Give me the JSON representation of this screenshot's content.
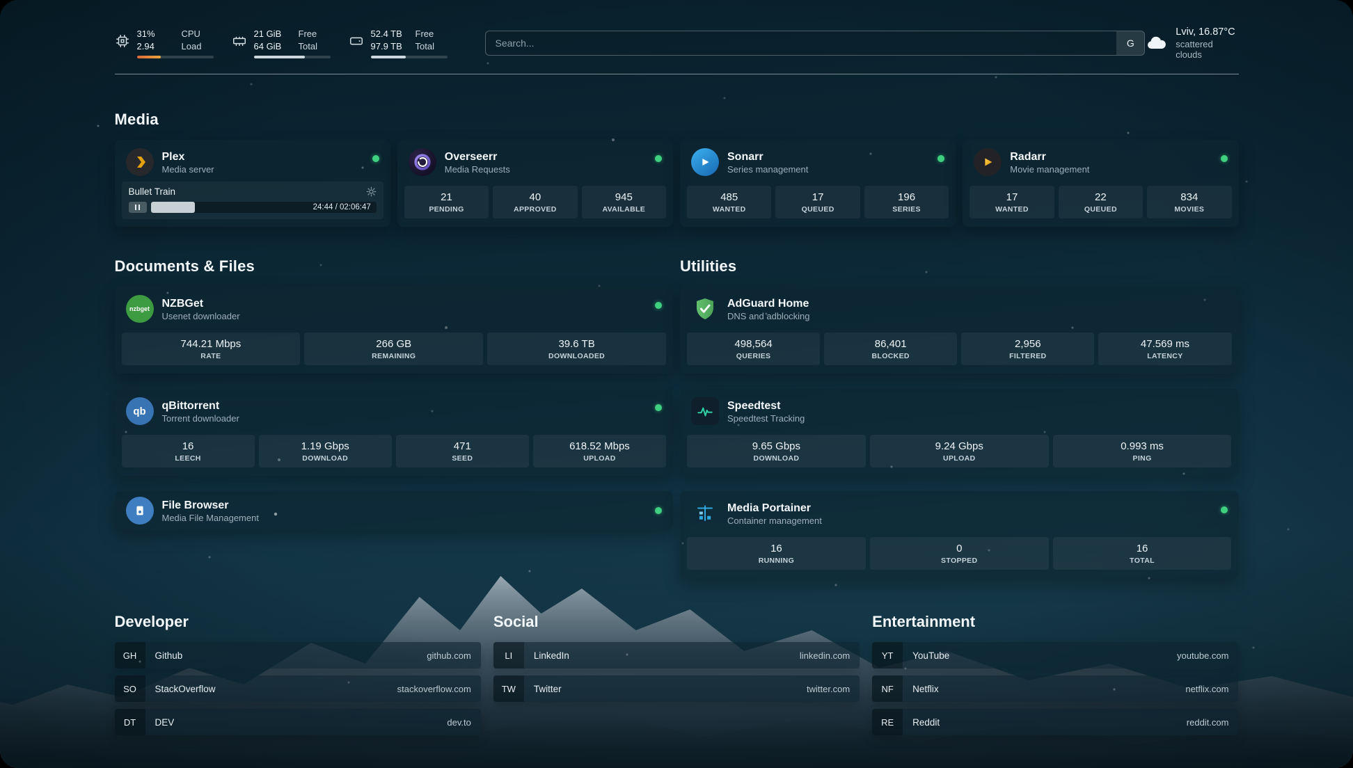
{
  "topbar": {
    "cpu": {
      "icon": "cpu-icon",
      "percent": "31%",
      "load": "2.94",
      "label_top": "CPU",
      "label_bottom": "Load",
      "bar_percent": 31,
      "bar_color": "#e8a43c"
    },
    "memory": {
      "icon": "memory-icon",
      "free": "21 GiB",
      "total": "64 GiB",
      "label_top": "Free",
      "label_bottom": "Total",
      "bar_percent": 67
    },
    "disk": {
      "icon": "disk-icon",
      "free": "52.4 TB",
      "total": "97.9 TB",
      "label_top": "Free",
      "label_bottom": "Total",
      "bar_percent": 46
    },
    "search": {
      "icon": "search-provider-icon",
      "placeholder": "Search...",
      "button_label": "G"
    },
    "weather": {
      "icon": "cloud-icon",
      "location": "Lviv, 16.87°C",
      "condition": "scattered clouds"
    }
  },
  "media": {
    "title": "Media",
    "plex": {
      "icon": "plex-icon",
      "name": "Plex",
      "subtitle": "Media server",
      "status_color": "#3ecf7f",
      "now_playing": "Bullet Train",
      "time": "24:44 / 02:06:47",
      "progress_percent": 19.5
    },
    "overseerr": {
      "icon": "overseerr-icon",
      "name": "Overseerr",
      "subtitle": "Media Requests",
      "stats": [
        {
          "value": "21",
          "label": "PENDING"
        },
        {
          "value": "40",
          "label": "APPROVED"
        },
        {
          "value": "945",
          "label": "AVAILABLE"
        }
      ]
    },
    "sonarr": {
      "icon": "sonarr-icon",
      "name": "Sonarr",
      "subtitle": "Series management",
      "stats": [
        {
          "value": "485",
          "label": "WANTED"
        },
        {
          "value": "17",
          "label": "QUEUED"
        },
        {
          "value": "196",
          "label": "SERIES"
        }
      ]
    },
    "radarr": {
      "icon": "radarr-icon",
      "name": "Radarr",
      "subtitle": "Movie management",
      "stats": [
        {
          "value": "17",
          "label": "WANTED"
        },
        {
          "value": "22",
          "label": "QUEUED"
        },
        {
          "value": "834",
          "label": "MOVIES"
        }
      ]
    }
  },
  "documents": {
    "title": "Documents & Files",
    "nzbget": {
      "icon": "nzbget-icon",
      "icon_text": "nzbget",
      "name": "NZBGet",
      "subtitle": "Usenet downloader",
      "stats": [
        {
          "value": "744.21 Mbps",
          "label": "RATE"
        },
        {
          "value": "266 GB",
          "label": "REMAINING"
        },
        {
          "value": "39.6 TB",
          "label": "DOWNLOADED"
        }
      ]
    },
    "qbittorrent": {
      "icon": "qbittorrent-icon",
      "icon_text": "qb",
      "name": "qBittorrent",
      "subtitle": "Torrent downloader",
      "stats": [
        {
          "value": "16",
          "label": "LEECH"
        },
        {
          "value": "1.19 Gbps",
          "label": "DOWNLOAD"
        },
        {
          "value": "471",
          "label": "SEED"
        },
        {
          "value": "618.52 Mbps",
          "label": "UPLOAD"
        }
      ]
    },
    "filebrowser": {
      "icon": "filebrowser-icon",
      "name": "File Browser",
      "subtitle": "Media File Management"
    }
  },
  "utilities": {
    "title": "Utilities",
    "adguard": {
      "icon": "adguard-shield-icon",
      "name": "AdGuard Home",
      "subtitle": "DNS and adblocking",
      "stats": [
        {
          "value": "498,564",
          "label": "QUERIES"
        },
        {
          "value": "86,401",
          "label": "BLOCKED"
        },
        {
          "value": "2,956",
          "label": "FILTERED"
        },
        {
          "value": "47.569 ms",
          "label": "LATENCY"
        }
      ]
    },
    "speedtest": {
      "icon": "speedtest-icon",
      "name": "Speedtest",
      "subtitle": "Speedtest Tracking",
      "stats": [
        {
          "value": "9.65 Gbps",
          "label": "DOWNLOAD"
        },
        {
          "value": "9.24 Gbps",
          "label": "UPLOAD"
        },
        {
          "value": "0.993 ms",
          "label": "PING"
        }
      ]
    },
    "portainer": {
      "icon": "portainer-icon",
      "name": "Media Portainer",
      "subtitle": "Container management",
      "stats": [
        {
          "value": "16",
          "label": "RUNNING"
        },
        {
          "value": "0",
          "label": "STOPPED"
        },
        {
          "value": "16",
          "label": "TOTAL"
        }
      ]
    }
  },
  "bookmarks": {
    "developer": {
      "title": "Developer",
      "items": [
        {
          "abbr": "GH",
          "name": "Github",
          "url": "github.com"
        },
        {
          "abbr": "SO",
          "name": "StackOverflow",
          "url": "stackoverflow.com"
        },
        {
          "abbr": "DT",
          "name": "DEV",
          "url": "dev.to"
        }
      ]
    },
    "social": {
      "title": "Social",
      "items": [
        {
          "abbr": "LI",
          "name": "LinkedIn",
          "url": "linkedin.com"
        },
        {
          "abbr": "TW",
          "name": "Twitter",
          "url": "twitter.com"
        }
      ]
    },
    "entertainment": {
      "title": "Entertainment",
      "items": [
        {
          "abbr": "YT",
          "name": "YouTube",
          "url": "youtube.com"
        },
        {
          "abbr": "NF",
          "name": "Netflix",
          "url": "netflix.com"
        },
        {
          "abbr": "RE",
          "name": "Reddit",
          "url": "reddit.com"
        }
      ]
    }
  }
}
